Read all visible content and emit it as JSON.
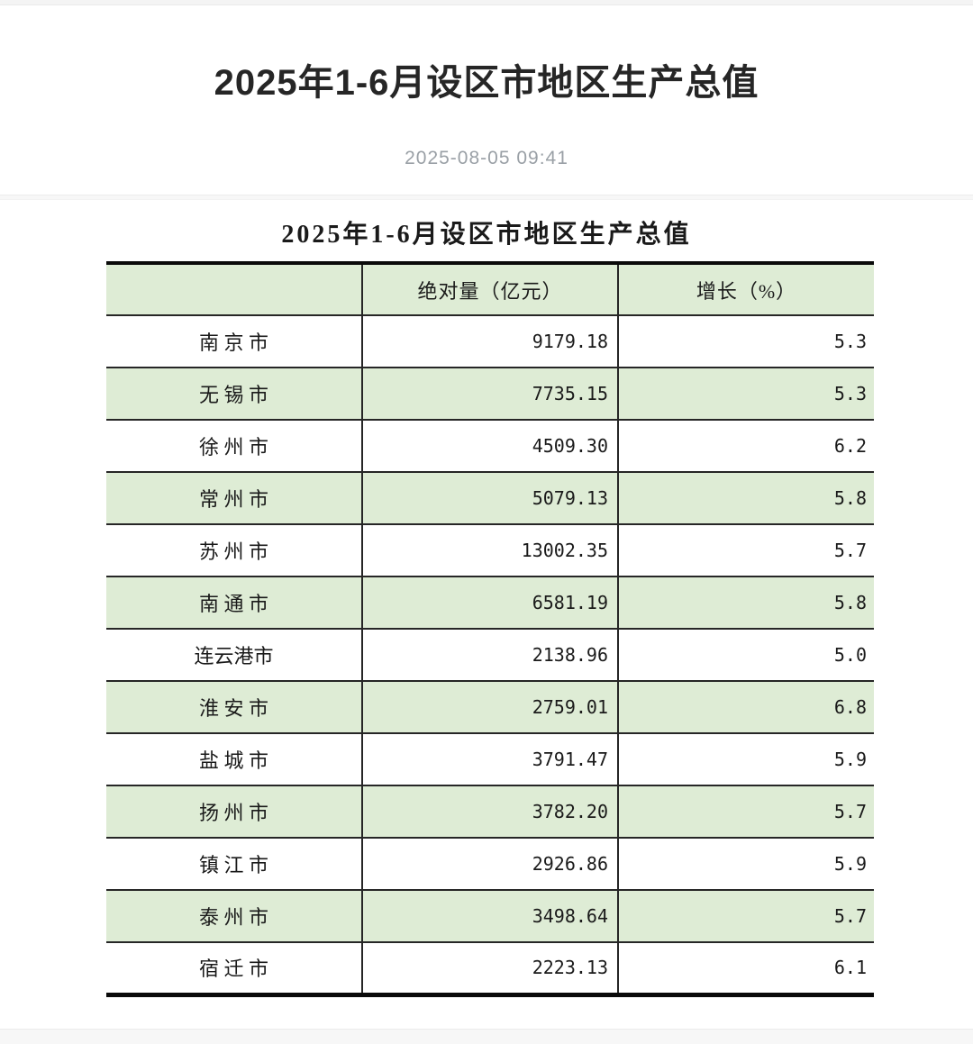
{
  "page": {
    "title": "2025年1-6月设区市地区生产总值",
    "publish_datetime": "2025-08-05 09:41"
  },
  "article": {
    "table_title": "2025年1-6月设区市地区生产总值"
  },
  "table": {
    "columns": [
      {
        "label": ""
      },
      {
        "label": "绝对量（亿元）"
      },
      {
        "label": "增长（%）"
      }
    ],
    "rows": [
      {
        "city": "南 京 市",
        "absolute": "9179.18",
        "growth": "5.3"
      },
      {
        "city": "无 锡 市",
        "absolute": "7735.15",
        "growth": "5.3"
      },
      {
        "city": "徐 州 市",
        "absolute": "4509.30",
        "growth": "6.2"
      },
      {
        "city": "常 州 市",
        "absolute": "5079.13",
        "growth": "5.8"
      },
      {
        "city": "苏 州 市",
        "absolute": "13002.35",
        "growth": "5.7"
      },
      {
        "city": "南 通 市",
        "absolute": "6581.19",
        "growth": "5.8"
      },
      {
        "city": "连云港市",
        "absolute": "2138.96",
        "growth": "5.0"
      },
      {
        "city": "淮 安 市",
        "absolute": "2759.01",
        "growth": "6.8"
      },
      {
        "city": "盐 城 市",
        "absolute": "3791.47",
        "growth": "5.9"
      },
      {
        "city": "扬 州 市",
        "absolute": "3782.20",
        "growth": "5.7"
      },
      {
        "city": "镇 江 市",
        "absolute": "2926.86",
        "growth": "5.9"
      },
      {
        "city": "泰 州 市",
        "absolute": "3498.64",
        "growth": "5.7"
      },
      {
        "city": "宿 迁 市",
        "absolute": "2223.13",
        "growth": "6.1"
      }
    ]
  },
  "colors": {
    "row_green": "#deecd5",
    "table_border": "#0a0a0a",
    "grid_line": "#262626",
    "date_text": "#9aa0a6"
  }
}
